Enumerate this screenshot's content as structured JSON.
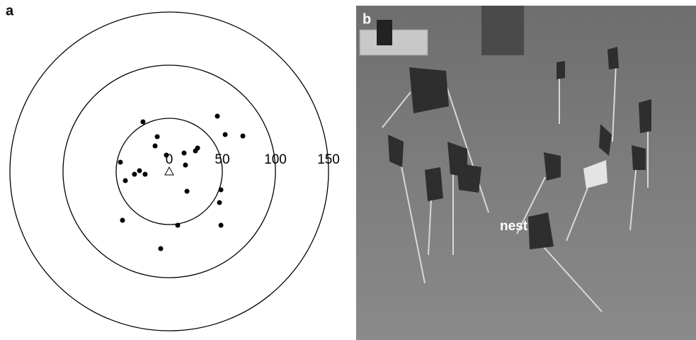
{
  "chart_data": {
    "type": "scatter",
    "panel_label": "a",
    "x": [
      -24.7,
      45.3,
      52.7,
      69.3,
      -11.3,
      -13.3,
      -2.7,
      26.7,
      24.7,
      14,
      -46,
      15.3,
      -28,
      -32.7,
      -22.7,
      -41.3,
      48.7,
      16.7,
      47.3,
      -44,
      8,
      48.7,
      -8
    ],
    "y": [
      46.7,
      52,
      34.7,
      33.3,
      32.7,
      24,
      15.3,
      22,
      19.3,
      17.3,
      8.7,
      6,
      0.7,
      -2.7,
      -2.7,
      -8.7,
      -17.3,
      -18.7,
      -29.3,
      -46,
      -50.7,
      -50.7,
      -72.7
    ],
    "color": "#000000",
    "xlim": [
      -150,
      150
    ],
    "ylim": [
      -150,
      150
    ],
    "xticks": [
      0,
      50,
      100,
      150
    ]
  },
  "photo": {
    "panel_label": "b",
    "annotation": "nest"
  }
}
